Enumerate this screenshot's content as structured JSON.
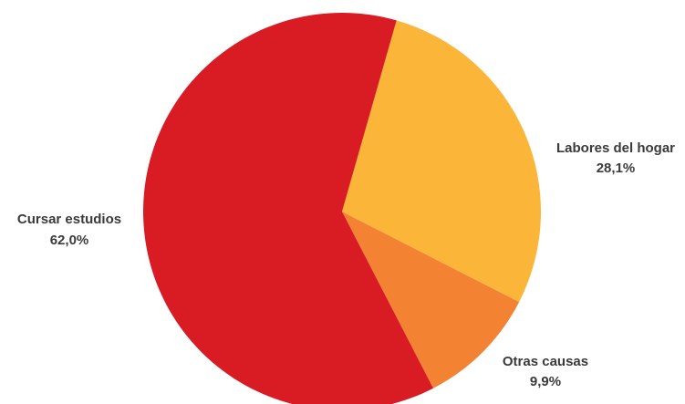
{
  "chart_data": {
    "type": "pie",
    "title": "",
    "legend": "none",
    "slices": [
      {
        "label": "Labores del hogar",
        "value": 28.1,
        "value_label": "28,1%",
        "color": "#FBB63A"
      },
      {
        "label": "Otras causas",
        "value": 9.9,
        "value_label": "9,9%",
        "color": "#F38232"
      },
      {
        "label": "Cursar estudios",
        "value": 62.0,
        "value_label": "62,0%",
        "color": "#D91C24"
      }
    ]
  }
}
